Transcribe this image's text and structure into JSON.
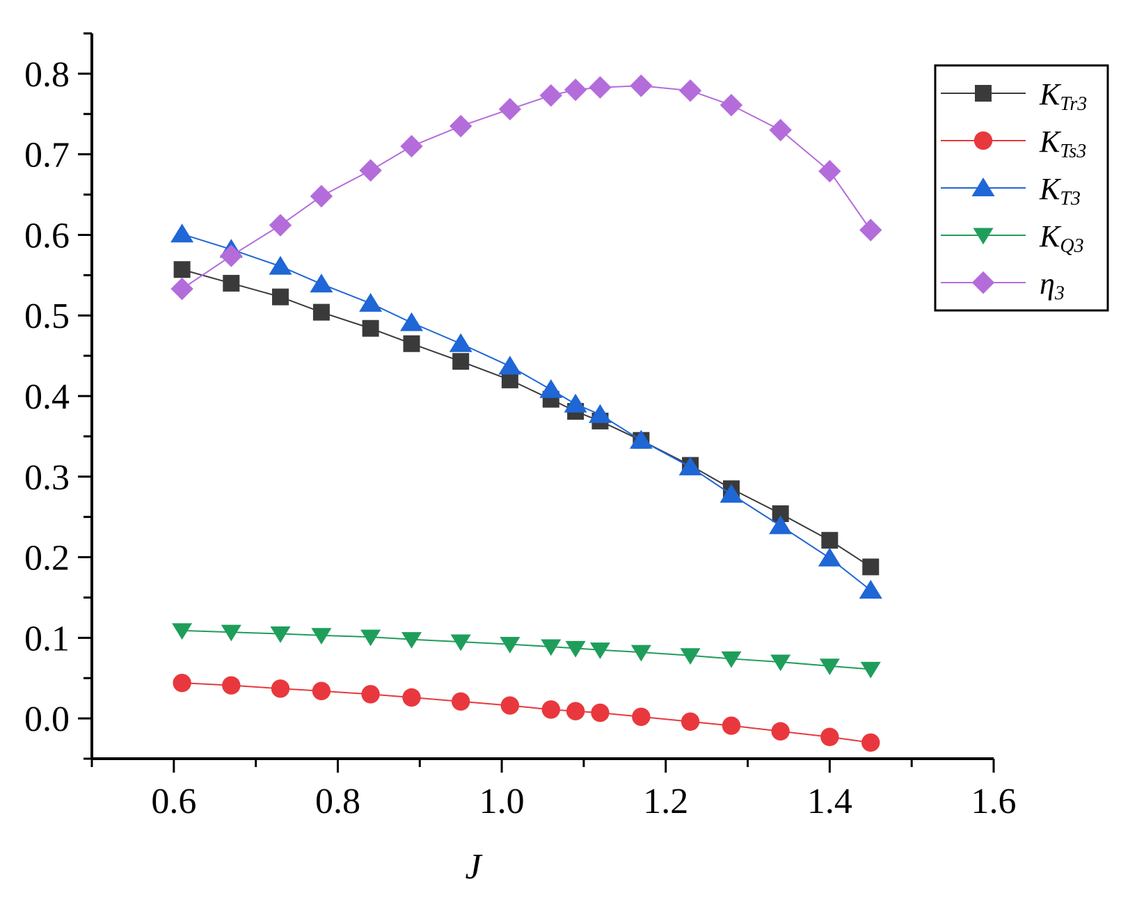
{
  "chart_data": {
    "type": "line",
    "title": "",
    "xlabel": "J",
    "ylabel": "",
    "xlim": [
      0.5,
      1.6
    ],
    "ylim": [
      -0.05,
      0.85
    ],
    "xticks": [
      0.6,
      0.8,
      1.0,
      1.2,
      1.4,
      1.6
    ],
    "xtick_labels": [
      "0.6",
      "0.8",
      "1.0",
      "1.2",
      "1.4",
      "1.6"
    ],
    "yticks": [
      0.0,
      0.1,
      0.2,
      0.3,
      0.4,
      0.5,
      0.6,
      0.7,
      0.8
    ],
    "ytick_labels": [
      "0.0",
      "0.1",
      "0.2",
      "0.3",
      "0.4",
      "0.5",
      "0.6",
      "0.7",
      "0.8"
    ],
    "grid": false,
    "legend_position": "top-right",
    "x": [
      0.61,
      0.67,
      0.73,
      0.78,
      0.84,
      0.89,
      0.95,
      1.01,
      1.06,
      1.09,
      1.12,
      1.17,
      1.23,
      1.28,
      1.34,
      1.4,
      1.45
    ],
    "series": [
      {
        "name": "K_Tr3",
        "legend_main": "K",
        "legend_sub": "Tr3",
        "color": "#3a3a3a",
        "marker": "square",
        "values": [
          0.557,
          0.54,
          0.523,
          0.504,
          0.484,
          0.465,
          0.443,
          0.42,
          0.396,
          0.381,
          0.369,
          0.345,
          0.314,
          0.285,
          0.254,
          0.221,
          0.188
        ]
      },
      {
        "name": "K_Ts3",
        "legend_main": "K",
        "legend_sub": "Ts3",
        "color": "#e8383d",
        "marker": "circle",
        "values": [
          0.044,
          0.041,
          0.037,
          0.034,
          0.03,
          0.026,
          0.021,
          0.016,
          0.011,
          0.009,
          0.007,
          0.002,
          -0.004,
          -0.009,
          -0.016,
          -0.023,
          -0.03
        ]
      },
      {
        "name": "K_T3",
        "legend_main": "K",
        "legend_sub": "T3",
        "color": "#1f66d6",
        "marker": "triangle-up",
        "values": [
          0.601,
          0.582,
          0.561,
          0.539,
          0.515,
          0.491,
          0.465,
          0.437,
          0.408,
          0.39,
          0.377,
          0.345,
          0.312,
          0.278,
          0.239,
          0.199,
          0.159
        ]
      },
      {
        "name": "K_Q3",
        "legend_main": "K",
        "legend_sub": "Q3",
        "color": "#1e9e5a",
        "marker": "triangle-down",
        "values": [
          0.109,
          0.107,
          0.105,
          0.103,
          0.101,
          0.098,
          0.095,
          0.092,
          0.089,
          0.087,
          0.085,
          0.082,
          0.078,
          0.074,
          0.07,
          0.065,
          0.061
        ]
      },
      {
        "name": "η3",
        "legend_main": "η",
        "legend_sub": "3",
        "color": "#b46cdb",
        "marker": "diamond",
        "values": [
          0.533,
          0.574,
          0.612,
          0.648,
          0.68,
          0.71,
          0.735,
          0.756,
          0.773,
          0.78,
          0.783,
          0.785,
          0.779,
          0.761,
          0.73,
          0.679,
          0.606
        ]
      }
    ]
  }
}
